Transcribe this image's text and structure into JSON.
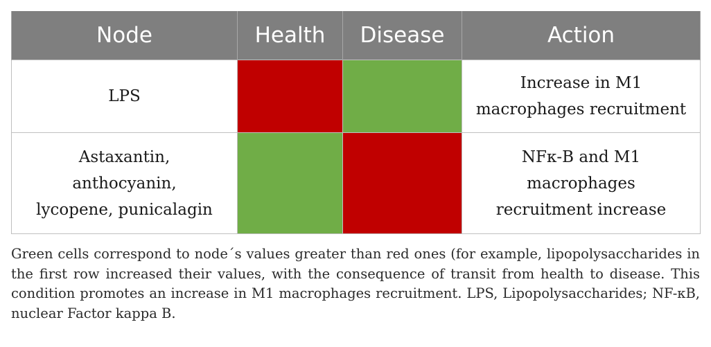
{
  "table": {
    "headers": [
      "Node",
      "Health",
      "Disease",
      "Action"
    ],
    "rows": [
      {
        "node": "LPS",
        "health_color": "#c00000",
        "disease_color": "#70ad47",
        "action_lines": [
          "Increase in M1",
          "macrophages recruitment"
        ]
      },
      {
        "node_lines": [
          "Astaxantin,",
          "anthocyanin,",
          "lycopene, punicalagin"
        ],
        "health_color": "#70ad47",
        "disease_color": "#c00000",
        "action_lines": [
          "NFκ-B and M1",
          "macrophages",
          "recruitment increase"
        ]
      }
    ]
  },
  "caption": "Green cells correspond to node´s values greater than red ones (for example, lipopolysaccharides in the first row increased their values, with the consequence of transit from health to disease. This condition promotes an increase in M1 macrophages recruitment. LPS, Lipopolysaccharides; NF-κB, nuclear Factor kappa B."
}
